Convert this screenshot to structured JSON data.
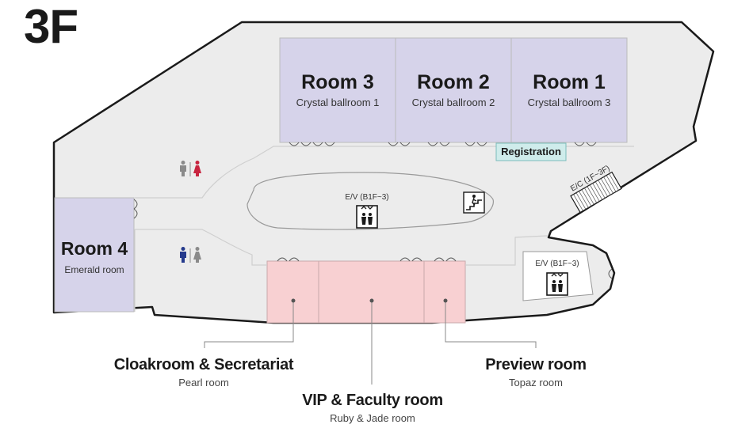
{
  "floor": "3F",
  "rooms": {
    "room3": {
      "name": "Room 3",
      "subtitle": "Crystal ballroom 1"
    },
    "room2": {
      "name": "Room 2",
      "subtitle": "Crystal ballroom 2"
    },
    "room1": {
      "name": "Room 1",
      "subtitle": "Crystal ballroom 3"
    },
    "room4": {
      "name": "Room 4",
      "subtitle": "Emerald room"
    }
  },
  "registration": "Registration",
  "elevator_center": "E/V (B1F~3)",
  "elevator_right": "E/V (B1F~3)",
  "escalator": "E/C (1F~3F)",
  "legend": {
    "cloakroom": {
      "title": "Cloakroom & Secretariat",
      "subtitle": "Pearl room"
    },
    "vip": {
      "title": "VIP & Faculty room",
      "subtitle": "Ruby & Jade room"
    },
    "preview": {
      "title": "Preview room",
      "subtitle": "Topaz room"
    }
  },
  "icons": {
    "restroom_top": [
      "man-icon",
      "woman-icon"
    ],
    "restroom_bottom": [
      "man-icon",
      "woman-icon"
    ],
    "elevator": "elevator-icon",
    "stairs": "stairs-icon"
  },
  "colors": {
    "purple_room": "#d6d3ea",
    "pink_room": "#f8d0d2",
    "corridor": "#ececec",
    "registration": "#cfeceb",
    "woman_top": "#c8243f",
    "man_bottom": "#253a8c"
  }
}
